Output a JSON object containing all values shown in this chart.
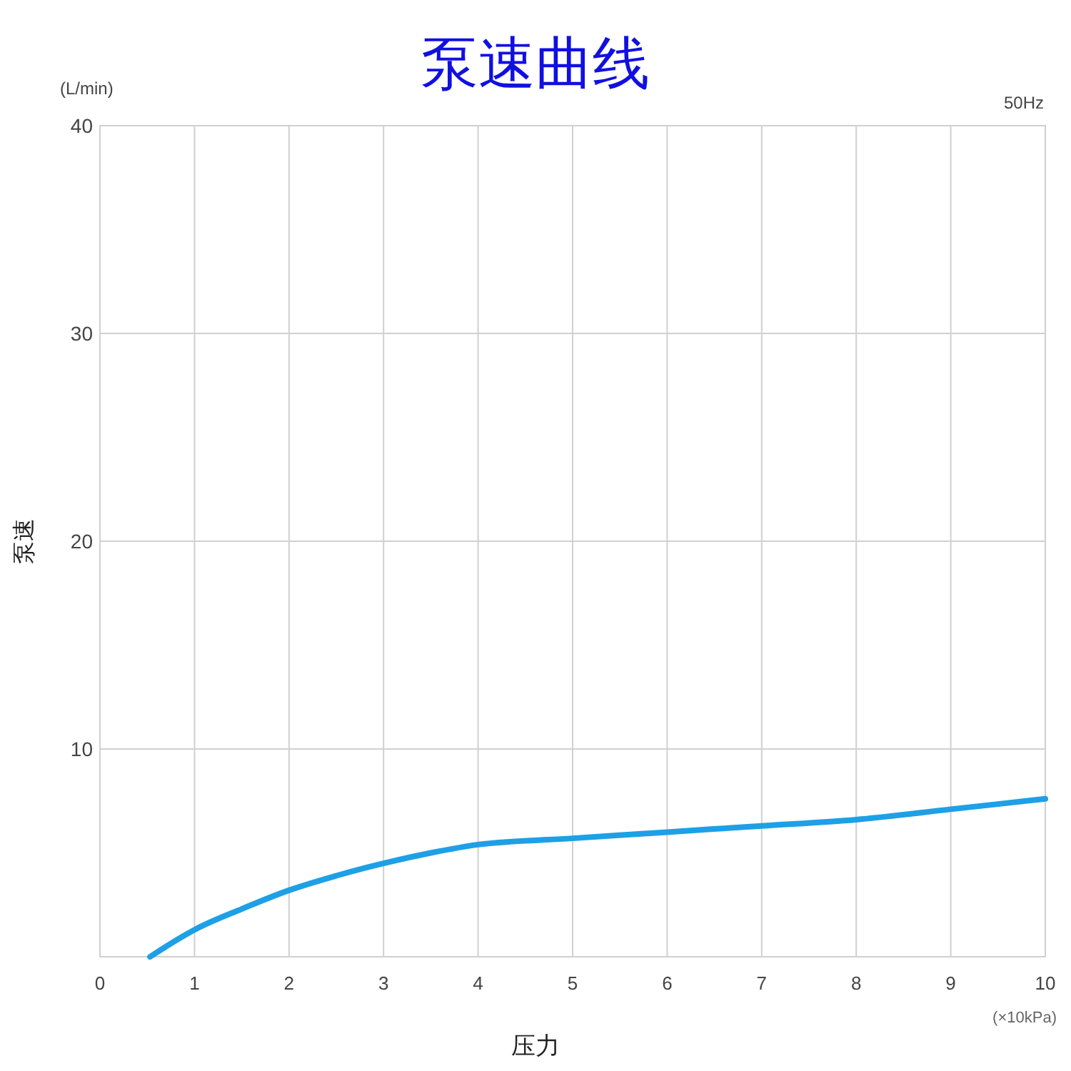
{
  "chart_data": {
    "type": "line",
    "title": "泵速曲线",
    "xlabel": "压力",
    "ylabel": "泵速",
    "annotations": [
      "(L/min)",
      "50Hz",
      "(×10kPa)"
    ],
    "x": [
      0.53,
      1,
      1.5,
      2,
      2.5,
      3,
      3.5,
      4,
      5,
      6,
      7,
      8,
      9,
      10
    ],
    "series": [
      {
        "color": "#1ea0e6",
        "values": [
          0,
          1.3,
          2.3,
          3.2,
          3.9,
          4.5,
          5.0,
          5.4,
          5.7,
          6.0,
          6.3,
          6.6,
          7.1,
          7.6
        ]
      }
    ],
    "xlim": [
      0,
      10
    ],
    "xticks": [
      0,
      1,
      2,
      3,
      4,
      5,
      6,
      7,
      8,
      9,
      10
    ],
    "ylim": [
      0,
      40
    ],
    "yticks": [
      10,
      20,
      30,
      40
    ],
    "grid": true,
    "marker": "none",
    "line_style": "solid"
  }
}
